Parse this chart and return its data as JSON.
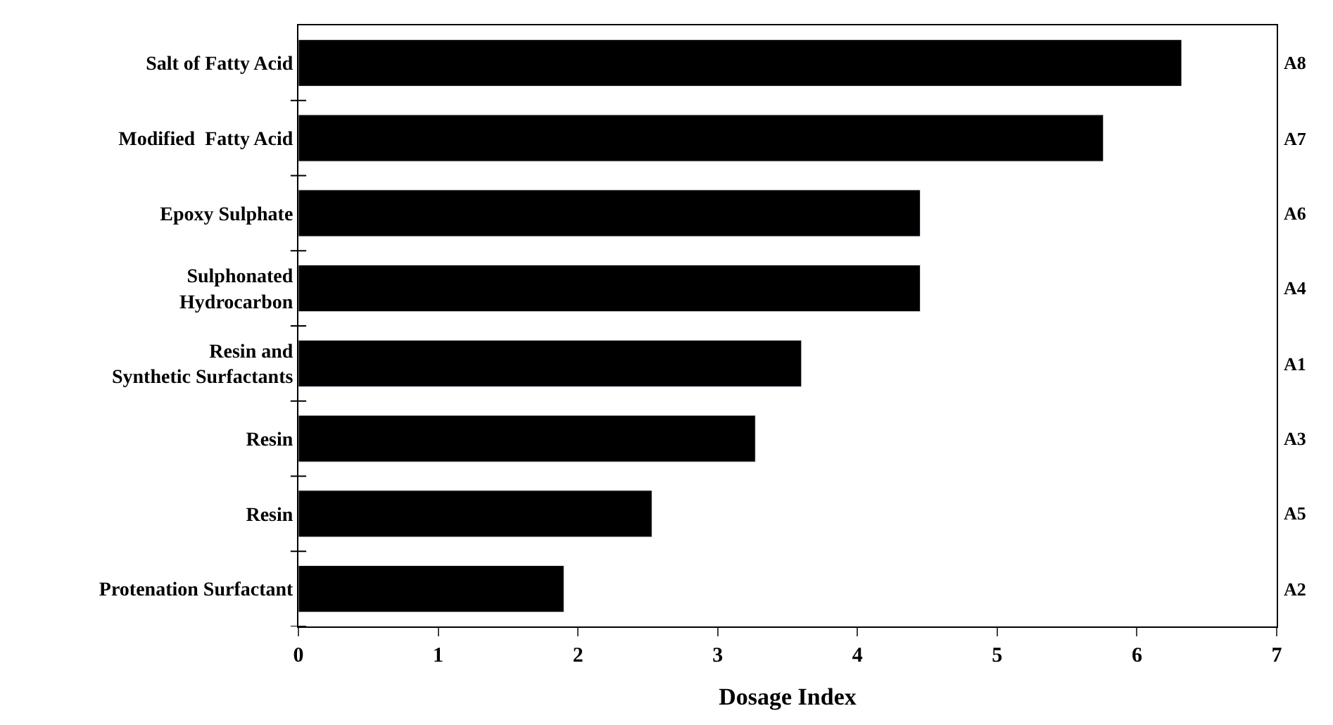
{
  "chart_data": {
    "type": "bar",
    "orientation": "horizontal",
    "xlabel": "Dosage Index",
    "categories": [
      "Salt of Fatty Acid",
      "Modified  Fatty Acid",
      "Epoxy Sulphate",
      "Sulphonated\nHydrocarbon",
      "Resin and\nSynthetic Surfactants",
      "Resin",
      "Resin",
      "Protenation Surfactant"
    ],
    "y2_categories": [
      "A8",
      "A7",
      "A6",
      "A4",
      "A1",
      "A3",
      "A5",
      "A2"
    ],
    "values": [
      6.32,
      5.76,
      4.45,
      4.45,
      3.6,
      3.27,
      2.53,
      1.9
    ],
    "color": "#000000",
    "xlim": [
      0,
      7
    ],
    "xticks": [
      0,
      1,
      2,
      3,
      4,
      5,
      6,
      7
    ]
  }
}
